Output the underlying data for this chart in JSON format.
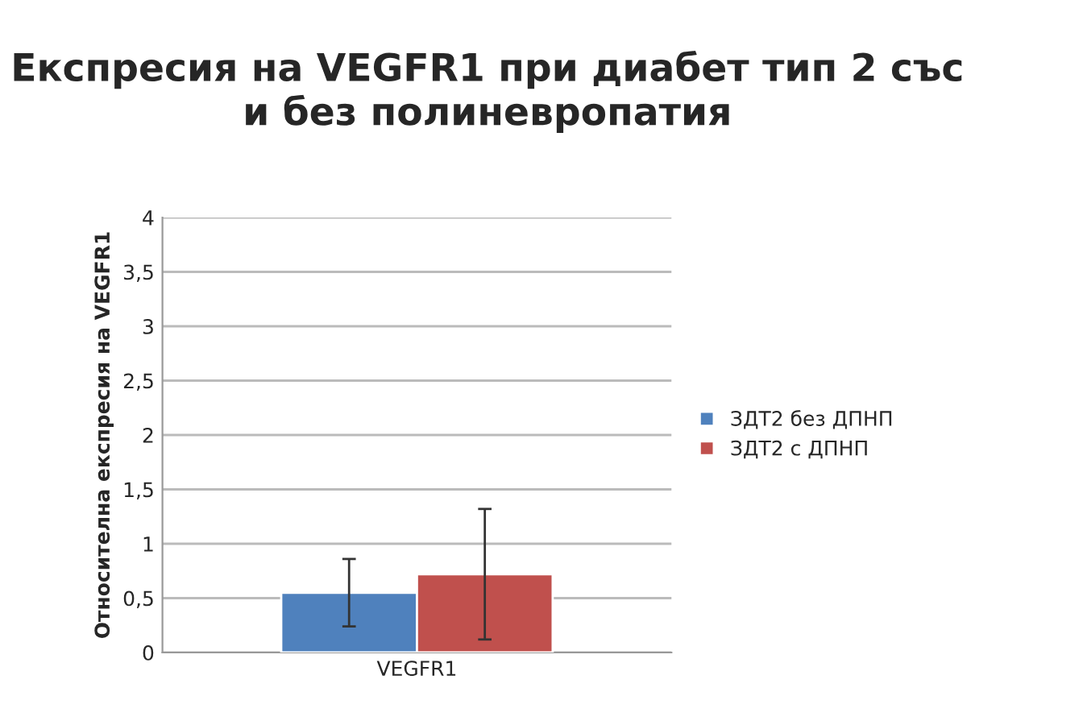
{
  "chart_data": {
    "type": "bar",
    "title": "Експресия на VEGFR1 при диабет тип 2 със и без полиневропатия",
    "ylabel": "Относителна експресия на VEGFR1",
    "categories": [
      "VEGFR1"
    ],
    "series": [
      {
        "name": "ЗДТ2 без ДПНП",
        "color": "#4f81bd",
        "values": [
          0.55
        ],
        "errors": [
          0.31
        ]
      },
      {
        "name": "ЗДТ2 с ДПНП",
        "color": "#c0504d",
        "values": [
          0.72
        ],
        "errors": [
          0.6
        ]
      }
    ],
    "ylim": [
      0,
      4
    ],
    "yticks": [
      0,
      {
        "value": 0.5,
        "label": "0,5"
      },
      1,
      {
        "value": 1.5,
        "label": "1,5"
      },
      2,
      {
        "value": 2.5,
        "label": "2,5"
      },
      3,
      {
        "value": 3.5,
        "label": "3,5"
      },
      4
    ],
    "grid": "y",
    "legend": "right"
  }
}
